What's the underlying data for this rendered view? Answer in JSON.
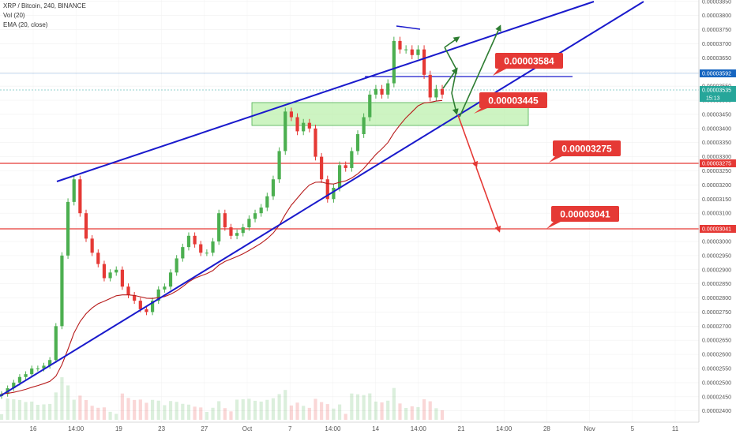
{
  "header": {
    "title": "XRP / Bitcoin, 240, BINANCE",
    "vol_label": "Vol (20)",
    "ema_label": "EMA (20, close)"
  },
  "colors": {
    "up": "#4caf50",
    "down": "#e53935",
    "ema": "#b71c1c",
    "trend": "#1a1acc",
    "level": "#e53935",
    "zone": "#b8f0a8",
    "green_arrow": "#2e7d32",
    "red_arrow": "#e53935",
    "callout": "#e53935",
    "blue_tag": "#1565c0",
    "teal_tag": "#26a69a"
  },
  "price_tags": {
    "blue": "0.00003592",
    "teal": "0.00003535",
    "countdown": "15:13",
    "red_upper": "0.00003275",
    "red_lower": "0.00003041"
  },
  "callouts": [
    "0.00003584",
    "0.00003445",
    "0.00003275",
    "0.00003041"
  ],
  "chart_data": {
    "type": "candlestick",
    "title": "XRP / Bitcoin, 240, BINANCE",
    "ylim": [
      2.36e-05,
      3.855e-05
    ],
    "y_ticks": [
      "0.00002400",
      "0.00002450",
      "0.00002500",
      "0.00002550",
      "0.00002600",
      "0.00002650",
      "0.00002700",
      "0.00002750",
      "0.00002800",
      "0.00002850",
      "0.00002900",
      "0.00002950",
      "0.00003000",
      "0.00003050",
      "0.00003100",
      "0.00003150",
      "0.00003200",
      "0.00003250",
      "0.00003300",
      "0.00003350",
      "0.00003400",
      "0.00003450",
      "0.00003500",
      "0.00003550",
      "0.00003600",
      "0.00003650",
      "0.00003700",
      "0.00003750",
      "0.00003800",
      "0.00003850"
    ],
    "x_ticks": [
      "16",
      "14:00",
      "19",
      "23",
      "27",
      "Oct",
      "7",
      "14:00",
      "14",
      "14:00",
      "21",
      "14:00",
      "28",
      "Nov",
      "5",
      "11"
    ],
    "ema_label": "EMA (20, close)",
    "volume_label": "Vol (20)",
    "horizontal_levels": [
      3.275e-05,
      3.041e-05
    ],
    "resistance_level": 3.584e-05,
    "support_zone": [
      3.41e-05,
      3.49e-05
    ],
    "close_series": [
      2.46e-05,
      2.48e-05,
      2.5e-05,
      2.52e-05,
      2.53e-05,
      2.55e-05,
      2.55e-05,
      2.56e-05,
      2.58e-05,
      2.7e-05,
      2.95e-05,
      3.14e-05,
      3.22e-05,
      3.1e-05,
      3.01e-05,
      2.96e-05,
      2.92e-05,
      2.87e-05,
      2.89e-05,
      2.9e-05,
      2.84e-05,
      2.81e-05,
      2.79e-05,
      2.76e-05,
      2.75e-05,
      2.79e-05,
      2.83e-05,
      2.84e-05,
      2.89e-05,
      2.94e-05,
      2.98e-05,
      3.02e-05,
      2.99e-05,
      2.96e-05,
      2.96e-05,
      3e-05,
      3.1e-05,
      3.05e-05,
      3.02e-05,
      3.03e-05,
      3.05e-05,
      3.08e-05,
      3.1e-05,
      3.12e-05,
      3.16e-05,
      3.22e-05,
      3.32e-05,
      3.46e-05,
      3.44e-05,
      3.39e-05,
      3.42e-05,
      3.4e-05,
      3.3e-05,
      3.22e-05,
      3.15e-05,
      3.19e-05,
      3.27e-05,
      3.26e-05,
      3.32e-05,
      3.38e-05,
      3.44e-05,
      3.52e-05,
      3.54e-05,
      3.52e-05,
      3.56e-05,
      3.71e-05,
      3.68e-05,
      3.68e-05,
      3.66e-05,
      3.68e-05,
      3.59e-05,
      3.51e-05,
      3.54e-05,
      3.52e-05
    ]
  }
}
